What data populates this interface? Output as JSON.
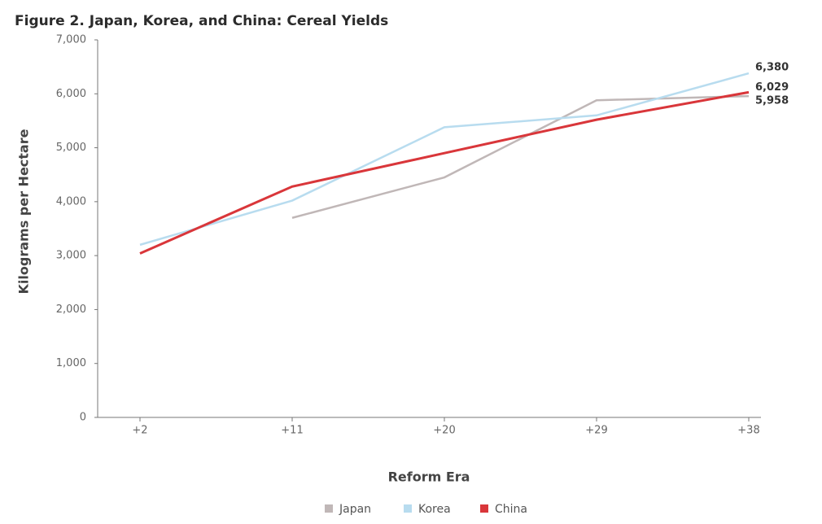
{
  "chart_data": {
    "type": "line",
    "title": "Figure 2. Japan, Korea, and China: Cereal Yields",
    "x_label": "Reform Era",
    "y_label": "Kilograms per Hectare",
    "categories": [
      "+2",
      "+11",
      "+20",
      "+29",
      "+38"
    ],
    "series": [
      {
        "name": "Japan",
        "color": "#c0b7b7",
        "values": [
          null,
          3700,
          4450,
          5880,
          5958
        ],
        "value_labels": [
          null,
          null,
          null,
          null,
          "5,958"
        ]
      },
      {
        "name": "Korea",
        "color": "#b8dcef",
        "values": [
          3200,
          4020,
          5380,
          5600,
          6380
        ],
        "value_labels": [
          null,
          null,
          null,
          null,
          "6,380"
        ]
      },
      {
        "name": "China",
        "color": "#d9363a",
        "values": [
          3040,
          4280,
          4900,
          5520,
          6029
        ],
        "value_labels": [
          null,
          null,
          null,
          null,
          "6,029"
        ]
      }
    ],
    "ylim": [
      0,
      7000
    ],
    "yticks": [
      0,
      {
        "value": 1000,
        "label": "1,000"
      },
      {
        "value": 2000,
        "label": "2,000"
      },
      {
        "value": 3000,
        "label": "3,000"
      },
      {
        "value": 4000,
        "label": "4,000"
      },
      {
        "value": 5000,
        "label": "5,000"
      },
      {
        "value": 6000,
        "label": "6,000"
      },
      {
        "value": 7000,
        "label": "7,000"
      }
    ],
    "grid": false
  }
}
